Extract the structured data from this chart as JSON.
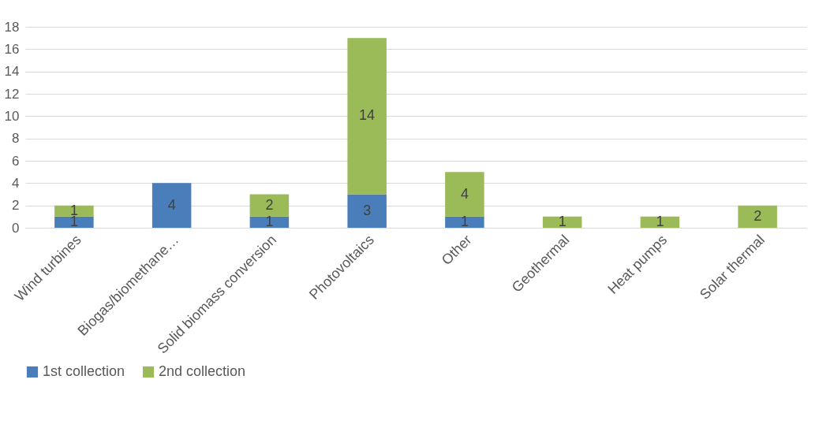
{
  "chart_data": {
    "type": "bar",
    "stacked": true,
    "categories": [
      "Wind turbines",
      "Biogas/biomethane…",
      "Solid biomass conversion",
      "Photovoltaics",
      "Other",
      "Geothermal",
      "Heat pumps",
      "Solar thermal"
    ],
    "series": [
      {
        "name": "1st collection",
        "color": "#4a7ebb",
        "values": [
          1,
          4,
          1,
          3,
          1,
          null,
          null,
          null
        ]
      },
      {
        "name": "2nd collection",
        "color": "#9bbb59",
        "values": [
          1,
          null,
          2,
          14,
          4,
          1,
          1,
          2
        ]
      }
    ],
    "ylim": [
      0,
      18
    ],
    "yticks": [
      0,
      2,
      4,
      6,
      8,
      10,
      12,
      14,
      16,
      18
    ],
    "grid": "y",
    "legend": "bottom",
    "data_labels": true
  }
}
